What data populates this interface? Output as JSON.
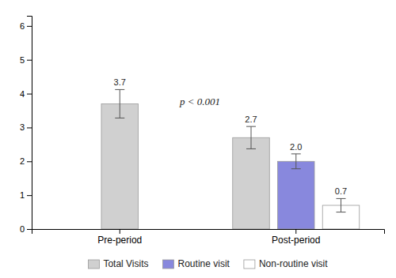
{
  "chart_data": {
    "type": "bar",
    "categories": [
      "Pre-period",
      "Post-period"
    ],
    "series": [
      {
        "name": "Total Visits",
        "color": "#d0d0d0",
        "values": [
          3.7,
          2.7
        ],
        "errors": [
          0.42,
          0.33
        ],
        "value_labels": [
          "3.7",
          "2.7"
        ]
      },
      {
        "name": "Routine visit",
        "color": "#8888dd",
        "values": [
          null,
          2.0
        ],
        "errors": [
          null,
          0.22
        ],
        "value_labels": [
          null,
          "2.0"
        ]
      },
      {
        "name": "Non-routine visit",
        "color": "#ffffff",
        "values": [
          null,
          0.7
        ],
        "errors": [
          null,
          0.2
        ],
        "value_labels": [
          null,
          "0.7"
        ]
      }
    ],
    "ylim": [
      0,
      6.3
    ],
    "yticks": [
      0,
      1,
      2,
      3,
      4,
      5,
      6
    ],
    "grid": false,
    "legend": "bottom",
    "data_labels": true,
    "annotations": [
      {
        "text": "p < 0.001"
      }
    ]
  }
}
